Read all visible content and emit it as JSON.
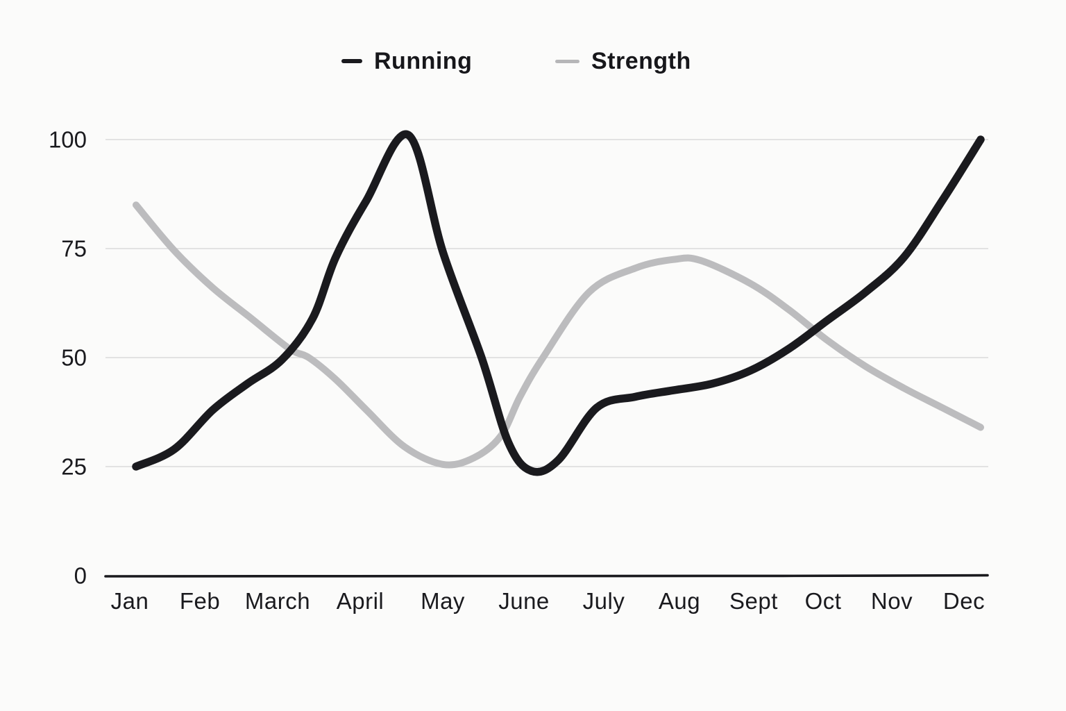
{
  "page": {
    "background": "#fbfbfa"
  },
  "legend": {
    "items": [
      {
        "label": "Running",
        "color": "#1a1a1e"
      },
      {
        "label": "Strength",
        "color": "#b6b6b8"
      }
    ]
  },
  "chart_data": {
    "type": "line",
    "title": "",
    "xlabel": "",
    "ylabel": "",
    "categories": [
      "Jan",
      "Feb",
      "March",
      "April",
      "May",
      "June",
      "July",
      "Aug",
      "Sept",
      "Oct",
      "Nov",
      "Dec"
    ],
    "y_ticks": [
      0,
      25,
      50,
      75,
      100
    ],
    "ylim": [
      0,
      105
    ],
    "grid": "horizontal gridlines at 25, 50, 75, 100; heavy black baseline at 0",
    "legend_position": "top-center",
    "line_style": "smooth hand-drawn curves, rounded caps, black drawn over gray",
    "series": [
      {
        "name": "Running",
        "color": "#1a1a1e",
        "stroke_width": 11.5,
        "monthly_values": [
          25,
          38,
          52,
          86,
          74,
          26,
          38,
          43,
          47,
          58,
          73,
          100
        ],
        "curve_points": [
          [
            0,
            25
          ],
          [
            0.5,
            29
          ],
          [
            1,
            38
          ],
          [
            1.45,
            44
          ],
          [
            1.9,
            49.5
          ],
          [
            2.3,
            59
          ],
          [
            2.6,
            73
          ],
          [
            3,
            86
          ],
          [
            3.55,
            101
          ],
          [
            4,
            74
          ],
          [
            4.5,
            50
          ],
          [
            4.85,
            30.5
          ],
          [
            5.15,
            24
          ],
          [
            5.5,
            26.5
          ],
          [
            6,
            38.5
          ],
          [
            6.5,
            41
          ],
          [
            7,
            42.5
          ],
          [
            7.5,
            44
          ],
          [
            8,
            47
          ],
          [
            8.5,
            52
          ],
          [
            9,
            58.5
          ],
          [
            9.5,
            65
          ],
          [
            10,
            73
          ],
          [
            10.5,
            86
          ],
          [
            11,
            100
          ]
        ]
      },
      {
        "name": "Strength",
        "color": "#bcbcbe",
        "stroke_width": 10,
        "monthly_values": [
          85,
          66,
          52,
          38,
          25,
          41,
          66,
          72,
          67,
          54,
          43,
          34
        ],
        "curve_points": [
          [
            0,
            85
          ],
          [
            0.5,
            74.5
          ],
          [
            1,
            66
          ],
          [
            1.5,
            59
          ],
          [
            2,
            52
          ],
          [
            2.25,
            50
          ],
          [
            2.6,
            45
          ],
          [
            3,
            38
          ],
          [
            3.5,
            29.5
          ],
          [
            4,
            25.5
          ],
          [
            4.4,
            27
          ],
          [
            4.75,
            32
          ],
          [
            5,
            41
          ],
          [
            5.3,
            50
          ],
          [
            5.9,
            65
          ],
          [
            6.5,
            70.5
          ],
          [
            7,
            72.5
          ],
          [
            7.35,
            72.3
          ],
          [
            8,
            67
          ],
          [
            8.5,
            61
          ],
          [
            9,
            54
          ],
          [
            9.5,
            48
          ],
          [
            10,
            43
          ],
          [
            10.5,
            38.5
          ],
          [
            11,
            34
          ]
        ]
      }
    ],
    "notes": "Running peaks at ~101 between April and May and bottoms at ~24 just after June; Strength bottoms at ~25 in May and peaks at ~73 near August. Curves cross near March (~52), late June (~31) and just before October (~56)."
  }
}
